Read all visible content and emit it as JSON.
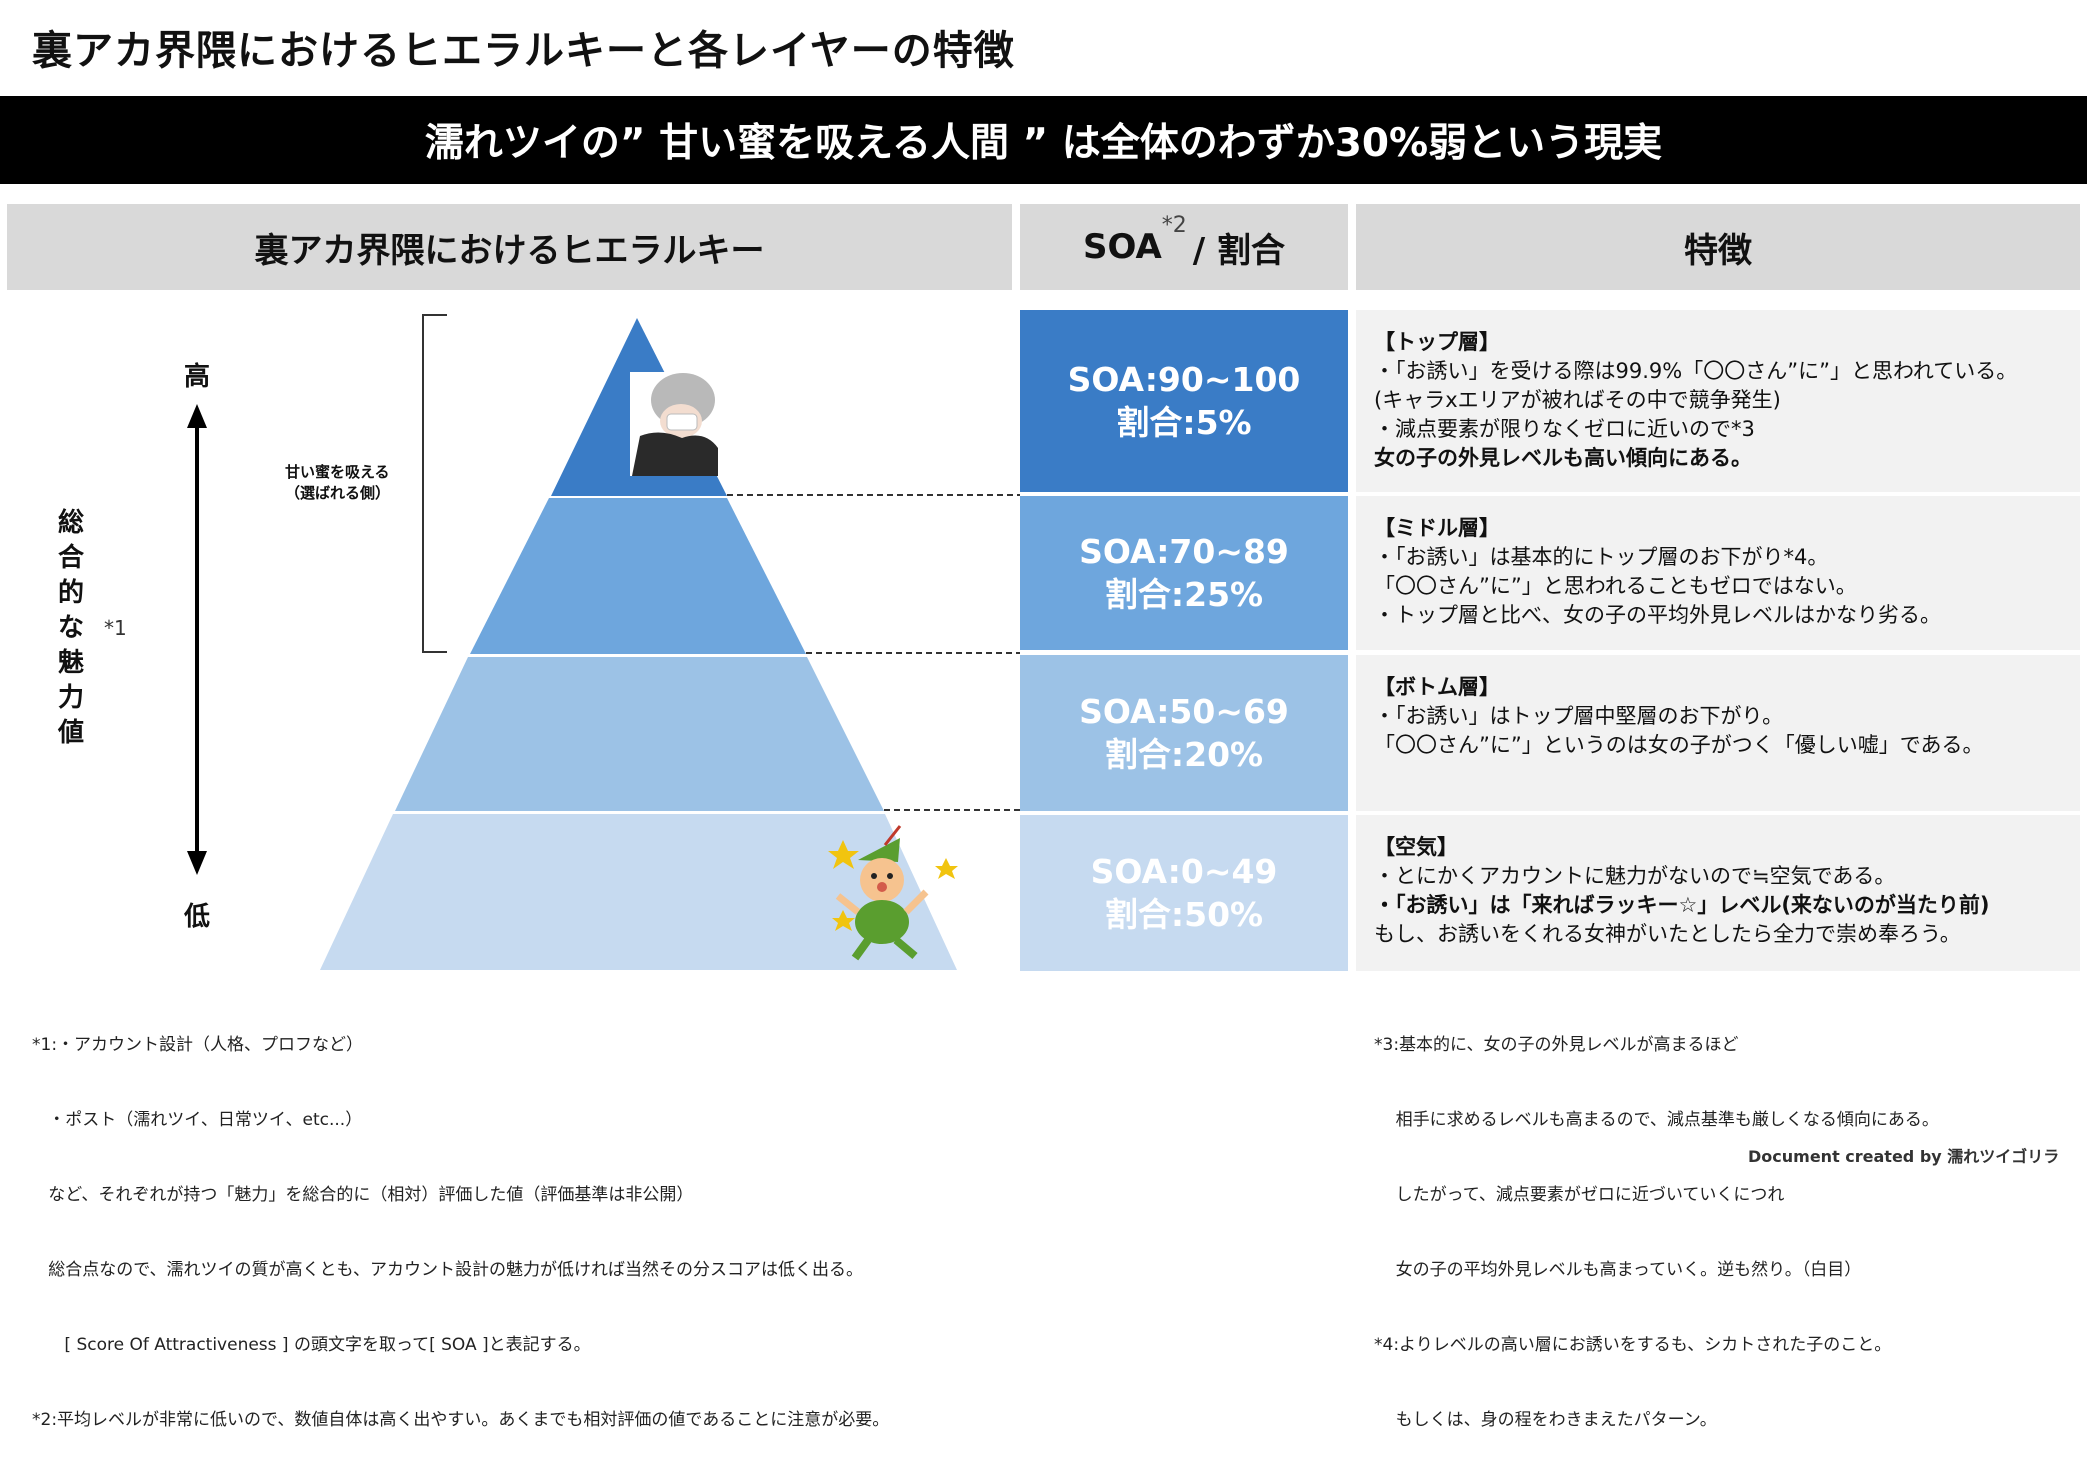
{
  "page_title": "裏アカ界隈におけるヒエラルキーと各レイヤーの特徴",
  "banner": "濡れツイの” 甘い蜜を吸える人間 ” は全体のわずか30%弱という現実",
  "headers": {
    "hierarchy": "裏アカ界隈におけるヒエラルキー",
    "soa_label": "SOA",
    "soa_sup": "*2",
    "soa_rest": "/  割合",
    "features": "特徴"
  },
  "axis": {
    "high": "高",
    "low": "低",
    "label": "総合的な魅力値",
    "note": "*1"
  },
  "bracket_label": [
    "甘い蜜を吸える",
    "（選ばれる側）"
  ],
  "layers": [
    {
      "soa": "SOA:90~100",
      "ratio": "割合:5%",
      "color": "#3a7cc6",
      "title": "【トップ層】",
      "lines": [
        "・「お誘い」を受ける際は99.9%「〇〇さん”に”」と思われている。",
        "(キャラxエリアが被ればその中で競争発生)",
        "・減点要素が限りなくゼロに近いので*3",
        "女の子の外見レベルも高い傾向にある。"
      ]
    },
    {
      "soa": "SOA:70~89",
      "ratio": "割合:25%",
      "color": "#6ea6dd",
      "title": "【ミドル層】",
      "lines": [
        "・「お誘い」は基本的にトップ層のお下がり*4。",
        "「〇〇さん”に”」と思われることもゼロではない。",
        "・トップ層と比べ、女の子の平均外見レベルはかなり劣る。"
      ]
    },
    {
      "soa": "SOA:50~69",
      "ratio": "割合:20%",
      "color": "#9cc2e6",
      "title": "【ボトム層】",
      "lines": [
        "・「お誘い」はトップ層中堅層のお下がり。",
        "「〇〇さん”に”」というのは女の子がつく「優しい嘘」である。"
      ]
    },
    {
      "soa": "SOA:0~49",
      "ratio": "割合:50%",
      "color": "#c6daf0",
      "title": "【空気】",
      "lines": [
        "・とにかくアカウントに魅力がないので≒空気である。",
        "・「お誘い」は「来ればラッキー☆」レベル(来ないのが当たり前)",
        "もし、お誘いをくれる女神がいたとしたら全力で崇め奉ろう。"
      ]
    }
  ],
  "footnotes_left": [
    "*1:・アカウント設計（人格、プロフなど）",
    "   ・ポスト（濡れツイ、日常ツイ、etc...）",
    "   など、それぞれが持つ「魅力」を総合的に（相対）評価した値（評価基準は非公開）",
    "   総合点なので、濡れツイの質が高くとも、アカウント設計の魅力が低ければ当然その分スコアは低く出る。",
    "      [ Score Of Attractiveness ] の頭文字を取って[ SOA ]と表記する。",
    "*2:平均レベルが非常に低いので、数値自体は高く出やすい。あくまでも相対評価の値であることに注意が必要。"
  ],
  "footnotes_right": [
    "*3:基本的に、女の子の外見レベルが高まるほど",
    "    相手に求めるレベルも高まるので、減点基準も厳しくなる傾向にある。",
    "    したがって、減点要素がゼロに近づいていくにつれ",
    "    女の子の平均外見レベルも高まっていく。逆も然り。（白目）",
    "*4:よりレベルの高い層にお誘いをするも、シカトされた子のこと。",
    "    もしくは、身の程をわきまえたパターン。"
  ],
  "credit": "Document created by 濡れツイゴリラ"
}
